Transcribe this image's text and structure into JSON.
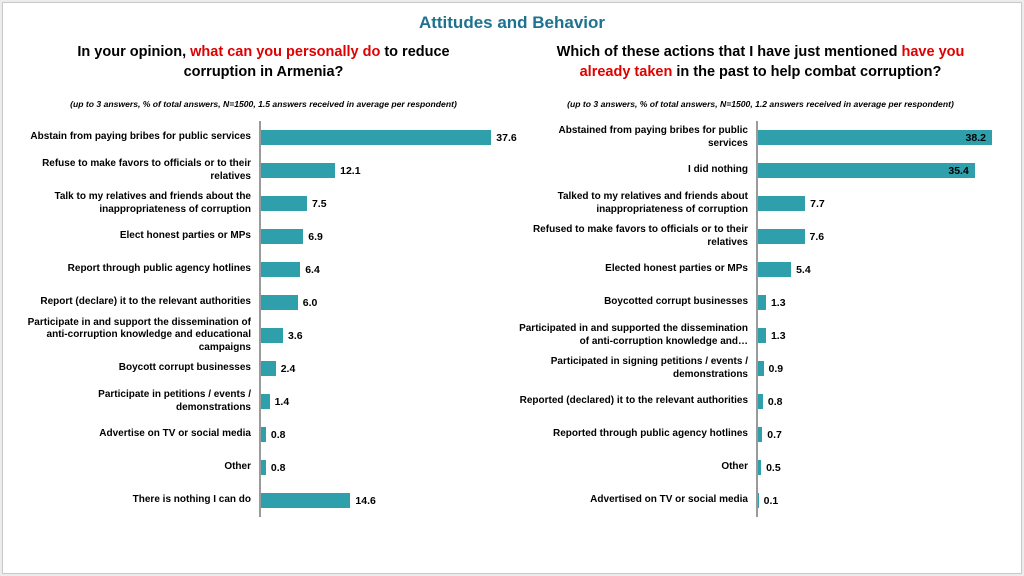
{
  "slide": {
    "title": "Attitudes and Behavior"
  },
  "chart_data": [
    {
      "type": "bar",
      "orientation": "horizontal",
      "title": "In your opinion, what can you personally do to reduce corruption in Armenia?",
      "title_parts": {
        "pre": "In your opinion, ",
        "highlight": "what can you personally do",
        "post": " to reduce corruption in Armenia?"
      },
      "subtitle": "(up to 3 answers, % of total answers, N=1500, 1.5 answers received in average per respondent)",
      "categories": [
        "Abstain from paying bribes for public services",
        "Refuse to make favors to officials or to their relatives",
        "Talk to my relatives and friends about the inappropriateness of corruption",
        "Elect honest parties or MPs",
        "Report through public agency hotlines",
        "Report (declare) it to the relevant authorities",
        "Participate in and support the dissemination of anti-corruption knowledge and educational campaigns",
        "Boycott corrupt businesses",
        "Participate in petitions / events / demonstrations",
        "Advertise on TV or social media",
        "Other",
        "There is nothing I can do"
      ],
      "values": [
        37.6,
        12.1,
        7.5,
        6.9,
        6.4,
        6.0,
        3.6,
        2.4,
        1.4,
        0.8,
        0.8,
        14.6
      ],
      "xlim": [
        0,
        40
      ],
      "bar_color": "#2e9fab",
      "value_labels_inside": false,
      "grid": false,
      "legend": false
    },
    {
      "type": "bar",
      "orientation": "horizontal",
      "title": "Which of these actions that I have just mentioned have you already taken in the past to help combat corruption?",
      "title_parts": {
        "pre": "Which of these actions that I have just mentioned ",
        "highlight": "have you already taken",
        "post": " in the past to help combat corruption?"
      },
      "subtitle": "(up to 3 answers, % of total answers, N=1500, 1.2 answers received in average per respondent)",
      "categories": [
        "Abstained from paying bribes for public services",
        "I did nothing",
        "Talked to my relatives and friends about inappropriateness of corruption",
        "Refused to make favors to officials or to their relatives",
        "Elected honest parties or MPs",
        "Boycotted corrupt businesses",
        "Participated in and supported the dissemination of anti-corruption knowledge and…",
        "Participated in signing petitions / events / demonstrations",
        "Reported (declared) it to the relevant authorities",
        "Reported through public agency hotlines",
        "Other",
        "Advertised on TV or social media"
      ],
      "values": [
        38.2,
        35.4,
        7.7,
        7.6,
        5.4,
        1.3,
        1.3,
        0.9,
        0.8,
        0.7,
        0.5,
        0.1
      ],
      "xlim": [
        0,
        40
      ],
      "bar_color": "#2e9fab",
      "value_labels_inside": true,
      "grid": false,
      "legend": false
    }
  ]
}
